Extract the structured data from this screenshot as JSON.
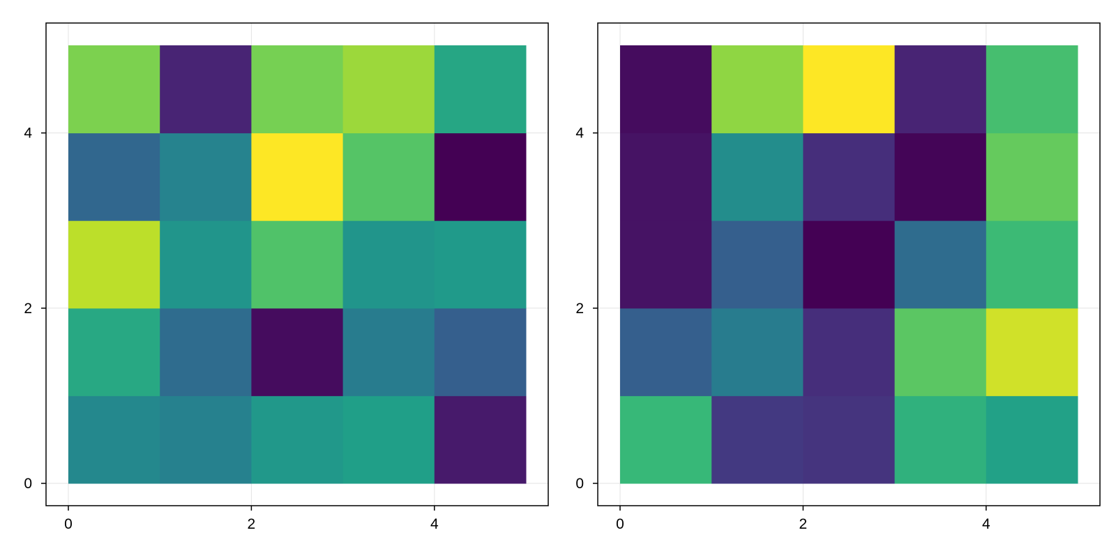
{
  "colormap": "viridis",
  "chart_data": [
    {
      "type": "heatmap",
      "title": "",
      "xlabel": "",
      "ylabel": "",
      "xlim": [
        0,
        5
      ],
      "ylim": [
        0,
        5
      ],
      "x_edges": [
        0,
        1,
        2,
        3,
        4,
        5
      ],
      "y_edges": [
        0,
        1,
        2,
        3,
        4,
        5
      ],
      "xticks": [
        0,
        2,
        4
      ],
      "yticks": [
        0,
        2,
        4
      ],
      "xtick_labels": [
        "0",
        "2",
        "4"
      ],
      "ytick_labels": [
        "0",
        "2",
        "4"
      ],
      "grid": true,
      "rows_bottom_to_top": [
        [
          0.47,
          0.44,
          0.53,
          0.56,
          0.07
        ],
        [
          0.6,
          0.35,
          0.03,
          0.42,
          0.3
        ],
        [
          0.9,
          0.52,
          0.72,
          0.52,
          0.54
        ],
        [
          0.33,
          0.45,
          1.0,
          0.73,
          0.0
        ],
        [
          0.8,
          0.1,
          0.79,
          0.85,
          0.59
        ]
      ]
    },
    {
      "type": "heatmap",
      "title": "",
      "xlabel": "",
      "ylabel": "",
      "xlim": [
        0,
        5
      ],
      "ylim": [
        0,
        5
      ],
      "x_edges": [
        0,
        1,
        2,
        3,
        4,
        5
      ],
      "y_edges": [
        0,
        1,
        2,
        3,
        4,
        5
      ],
      "xticks": [
        0,
        2,
        4
      ],
      "yticks": [
        0,
        2,
        4
      ],
      "xtick_labels": [
        "0",
        "2",
        "4"
      ],
      "ytick_labels": [
        "0",
        "2",
        "4"
      ],
      "grid": true,
      "rows_bottom_to_top": [
        [
          0.67,
          0.17,
          0.15,
          0.64,
          0.57
        ],
        [
          0.3,
          0.42,
          0.13,
          0.74,
          0.93
        ],
        [
          0.05,
          0.3,
          0.0,
          0.35,
          0.68
        ],
        [
          0.05,
          0.49,
          0.13,
          0.01,
          0.76
        ],
        [
          0.03,
          0.83,
          1.0,
          0.1,
          0.7
        ]
      ]
    }
  ]
}
